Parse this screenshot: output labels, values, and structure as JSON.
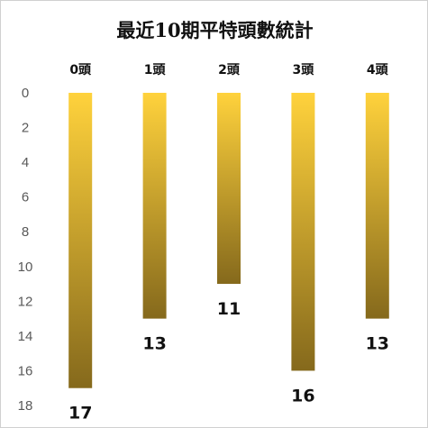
{
  "chart_data": {
    "type": "bar",
    "title": "最近10期平特頭數統計",
    "categories": [
      "0頭",
      "1頭",
      "2頭",
      "3頭",
      "4頭"
    ],
    "values": [
      17,
      13,
      11,
      16,
      13
    ],
    "ylim": [
      0,
      18
    ],
    "y_ticks": [
      0,
      2,
      4,
      6,
      8,
      10,
      12,
      14,
      16,
      18
    ],
    "y_axis_reversed": true,
    "x_axis_position": "top",
    "grid": false,
    "data_labels": true,
    "colors": {
      "bar_top": "#ffd23c",
      "bar_bottom": "#85691c",
      "tick_text": "#595959",
      "label_text": "#111111"
    }
  }
}
